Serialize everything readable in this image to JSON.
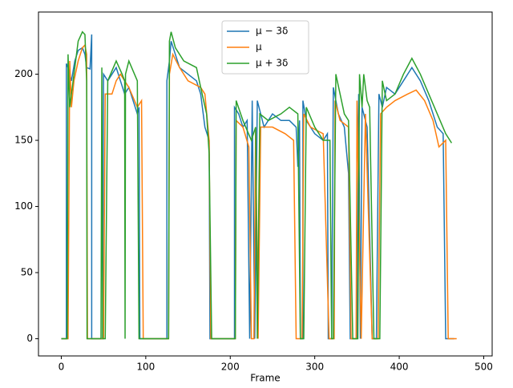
{
  "chart_data": {
    "type": "line",
    "xlabel": "Frame",
    "xlim": [
      -27,
      510
    ],
    "ylim": [
      -13,
      247
    ],
    "xticks": [
      0,
      100,
      200,
      300,
      400,
      500
    ],
    "yticks": [
      0,
      50,
      100,
      150,
      200
    ],
    "legend": "upper center",
    "series": [
      {
        "name": "μ − 3δ",
        "color": "#1f77b4",
        "x": [
          0,
          6,
          6,
          8,
          12,
          16,
          20,
          25,
          28,
          30,
          34,
          36,
          36,
          49,
          50,
          55,
          60,
          65,
          70,
          75,
          80,
          85,
          90,
          92,
          93,
          125,
          125,
          128,
          130,
          135,
          140,
          150,
          160,
          165,
          170,
          175,
          176,
          205,
          205,
          210,
          215,
          220,
          223,
          226,
          229,
          232,
          240,
          250,
          260,
          270,
          278,
          280,
          282,
          283,
          286,
          286,
          290,
          300,
          310,
          315,
          316,
          320,
          322,
          328,
          335,
          340,
          342,
          350,
          352,
          354,
          356,
          362,
          368,
          373,
          376,
          380,
          385,
          395,
          405,
          415,
          425,
          435,
          445,
          452,
          455,
          465
        ],
        "values": [
          0,
          0,
          208,
          205,
          195,
          210,
          218,
          220,
          215,
          205,
          204,
          230,
          0,
          0,
          200,
          195,
          200,
          205,
          195,
          185,
          190,
          180,
          170,
          175,
          0,
          0,
          195,
          210,
          225,
          215,
          205,
          200,
          195,
          185,
          160,
          150,
          0,
          0,
          175,
          170,
          160,
          165,
          0,
          180,
          0,
          180,
          160,
          170,
          165,
          165,
          160,
          130,
          165,
          0,
          0,
          180,
          165,
          155,
          150,
          155,
          0,
          0,
          190,
          170,
          160,
          125,
          0,
          0,
          185,
          0,
          175,
          160,
          0,
          0,
          185,
          175,
          190,
          185,
          195,
          205,
          195,
          180,
          160,
          155,
          0,
          0
        ]
      },
      {
        "name": "μ",
        "color": "#ff7f0e",
        "x": [
          0,
          8,
          10,
          12,
          15,
          20,
          25,
          28,
          30,
          31,
          50,
          52,
          60,
          65,
          70,
          80,
          90,
          95,
          97,
          127,
          128,
          132,
          140,
          150,
          165,
          170,
          175,
          177,
          206,
          207,
          215,
          222,
          225,
          228,
          230,
          233,
          236,
          250,
          265,
          275,
          278,
          285,
          287,
          295,
          310,
          317,
          323,
          324,
          330,
          340,
          343,
          349,
          350,
          355,
          360,
          368,
          375,
          378,
          385,
          395,
          410,
          420,
          430,
          440,
          447,
          455,
          458,
          468
        ],
        "values": [
          0,
          0,
          210,
          175,
          195,
          210,
          220,
          222,
          215,
          0,
          0,
          185,
          185,
          195,
          200,
          190,
          175,
          180,
          0,
          0,
          200,
          215,
          205,
          195,
          190,
          185,
          150,
          0,
          0,
          165,
          160,
          145,
          0,
          0,
          160,
          0,
          160,
          160,
          155,
          150,
          0,
          0,
          170,
          160,
          155,
          0,
          0,
          180,
          165,
          160,
          0,
          0,
          180,
          0,
          170,
          0,
          0,
          170,
          175,
          180,
          185,
          188,
          180,
          165,
          145,
          150,
          0,
          0
        ]
      },
      {
        "name": "μ + 3δ",
        "color": "#2ca02c",
        "x": [
          0,
          7,
          8,
          10,
          15,
          20,
          25,
          28,
          30,
          30.5,
          47,
          48,
          49,
          52,
          55,
          65,
          72,
          75,
          75.5,
          76,
          80,
          90,
          92,
          127,
          128,
          130,
          135,
          145,
          160,
          165,
          172,
          175,
          178,
          206,
          207,
          215,
          225,
          230,
          232,
          235,
          245,
          260,
          270,
          280,
          283,
          287,
          290,
          300,
          310,
          318,
          320,
          322,
          325,
          330,
          335,
          340,
          345,
          351,
          353,
          356,
          358,
          362,
          365,
          370,
          377,
          380,
          385,
          395,
          405,
          415,
          425,
          435,
          445,
          455,
          462
        ],
        "values": [
          0,
          0,
          215,
          175,
          200,
          225,
          232,
          230,
          195,
          0,
          0,
          205,
          0,
          0,
          195,
          210,
          200,
          195,
          0,
          200,
          210,
          195,
          0,
          0,
          225,
          232,
          220,
          210,
          205,
          190,
          170,
          140,
          0,
          0,
          180,
          165,
          150,
          160,
          0,
          170,
          165,
          170,
          175,
          170,
          0,
          0,
          175,
          160,
          150,
          150,
          0,
          0,
          200,
          185,
          170,
          165,
          0,
          0,
          200,
          175,
          200,
          180,
          175,
          0,
          0,
          195,
          180,
          185,
          200,
          212,
          200,
          185,
          170,
          155,
          148
        ]
      }
    ]
  }
}
